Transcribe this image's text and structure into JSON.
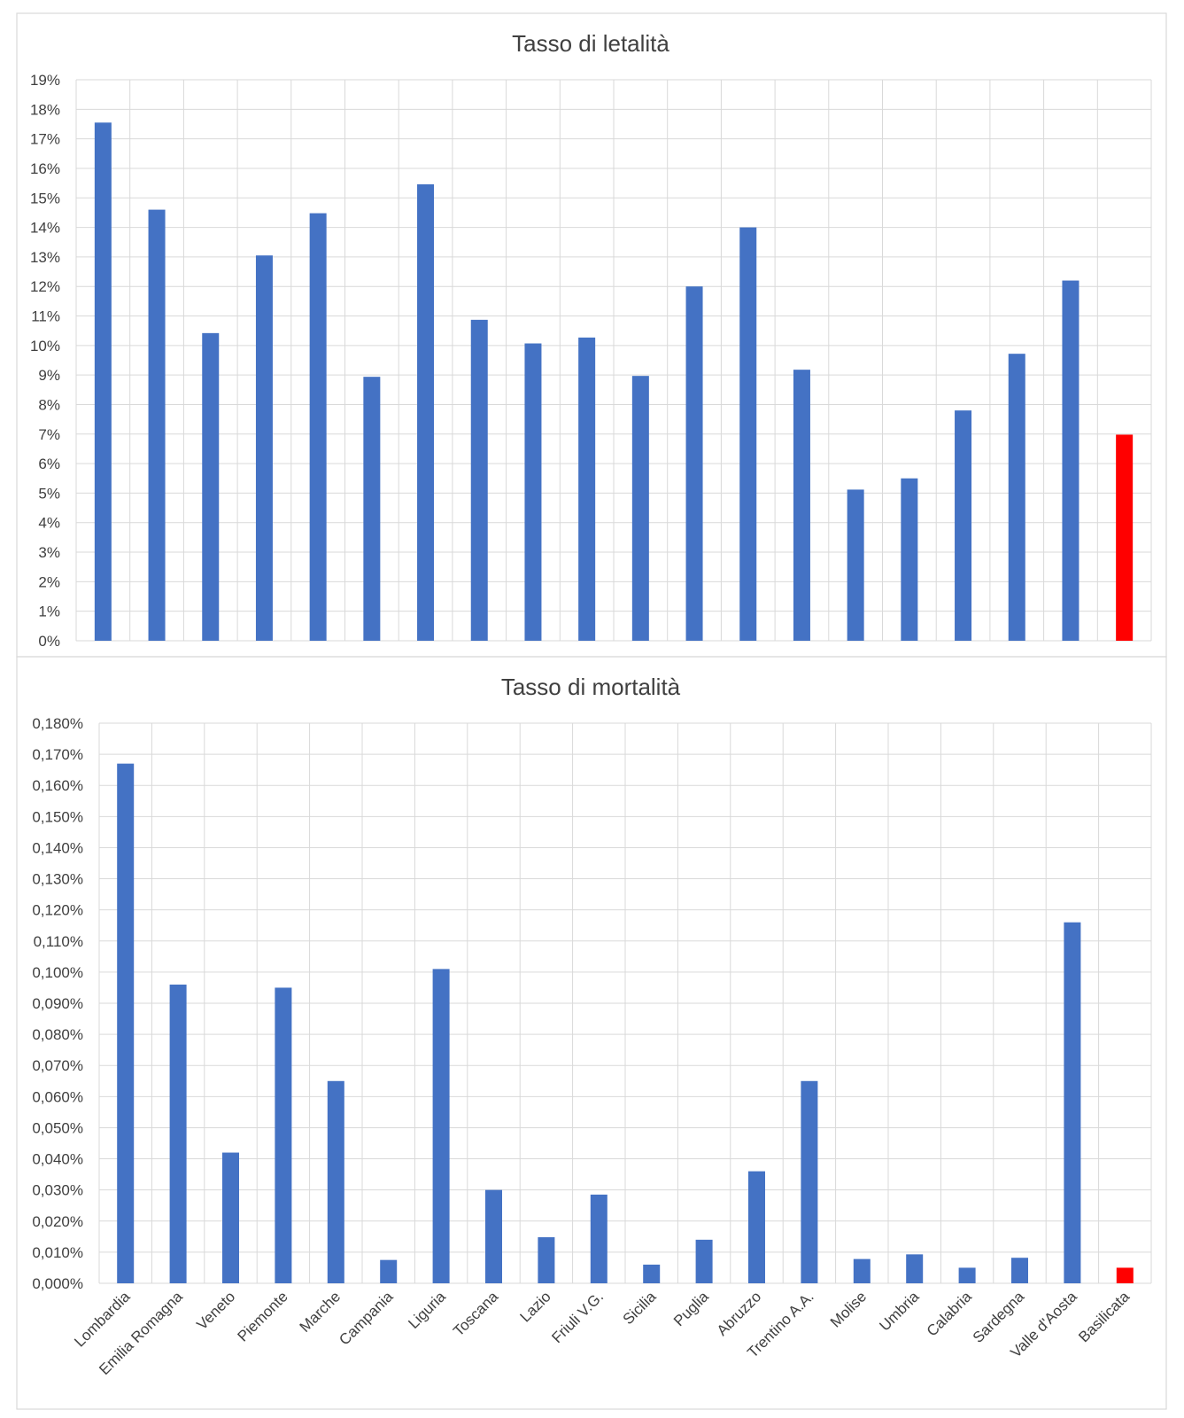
{
  "chart_data": [
    {
      "type": "bar",
      "title": "Tasso di letalità",
      "categories": [
        "Lombardia",
        "Emilia Romagna",
        "Veneto",
        "Piemonte",
        "Marche",
        "Campania",
        "Liguria",
        "Toscana",
        "Lazio",
        "Friuli V.G.",
        "Sicilia",
        "Puglia",
        "Abruzzo",
        "Trentino A.A.",
        "Molise",
        "Umbria",
        "Calabria",
        "Sardegna",
        "Valle d'Aosta",
        "Basilicata"
      ],
      "values": [
        17.55,
        14.6,
        10.42,
        13.05,
        14.48,
        8.94,
        15.46,
        10.87,
        10.07,
        10.27,
        8.97,
        12.0,
        14.0,
        9.18,
        5.12,
        5.5,
        7.8,
        9.72,
        12.2,
        6.98
      ],
      "unit": "%",
      "ylim": [
        0,
        19
      ],
      "ytick_step": 1,
      "ytick_labels": [
        "0%",
        "1%",
        "2%",
        "3%",
        "4%",
        "5%",
        "6%",
        "7%",
        "8%",
        "9%",
        "10%",
        "11%",
        "12%",
        "13%",
        "14%",
        "15%",
        "16%",
        "17%",
        "18%",
        "19%"
      ],
      "grid": true,
      "bar_color": "#4472C4",
      "highlight_category": "Basilicata",
      "highlight_color": "#FF0000"
    },
    {
      "type": "bar",
      "title": "Tasso di mortalità",
      "categories": [
        "Lombardia",
        "Emilia Romagna",
        "Veneto",
        "Piemonte",
        "Marche",
        "Campania",
        "Liguria",
        "Toscana",
        "Lazio",
        "Friuli V.G.",
        "Sicilia",
        "Puglia",
        "Abruzzo",
        "Trentino A.A.",
        "Molise",
        "Umbria",
        "Calabria",
        "Sardegna",
        "Valle d'Aosta",
        "Basilicata"
      ],
      "values": [
        0.167,
        0.096,
        0.042,
        0.095,
        0.065,
        0.0075,
        0.101,
        0.03,
        0.0148,
        0.0285,
        0.006,
        0.014,
        0.036,
        0.065,
        0.0078,
        0.0093,
        0.005,
        0.0082,
        0.116,
        0.005
      ],
      "unit": "%",
      "ylim": [
        0,
        0.18
      ],
      "ytick_step": 0.01,
      "ytick_labels": [
        "0,000%",
        "0,010%",
        "0,020%",
        "0,030%",
        "0,040%",
        "0,050%",
        "0,060%",
        "0,070%",
        "0,080%",
        "0,090%",
        "0,100%",
        "0,110%",
        "0,120%",
        "0,130%",
        "0,140%",
        "0,150%",
        "0,160%",
        "0,170%",
        "0,180%"
      ],
      "grid": true,
      "bar_color": "#4472C4",
      "highlight_category": "Basilicata",
      "highlight_color": "#FF0000"
    }
  ]
}
